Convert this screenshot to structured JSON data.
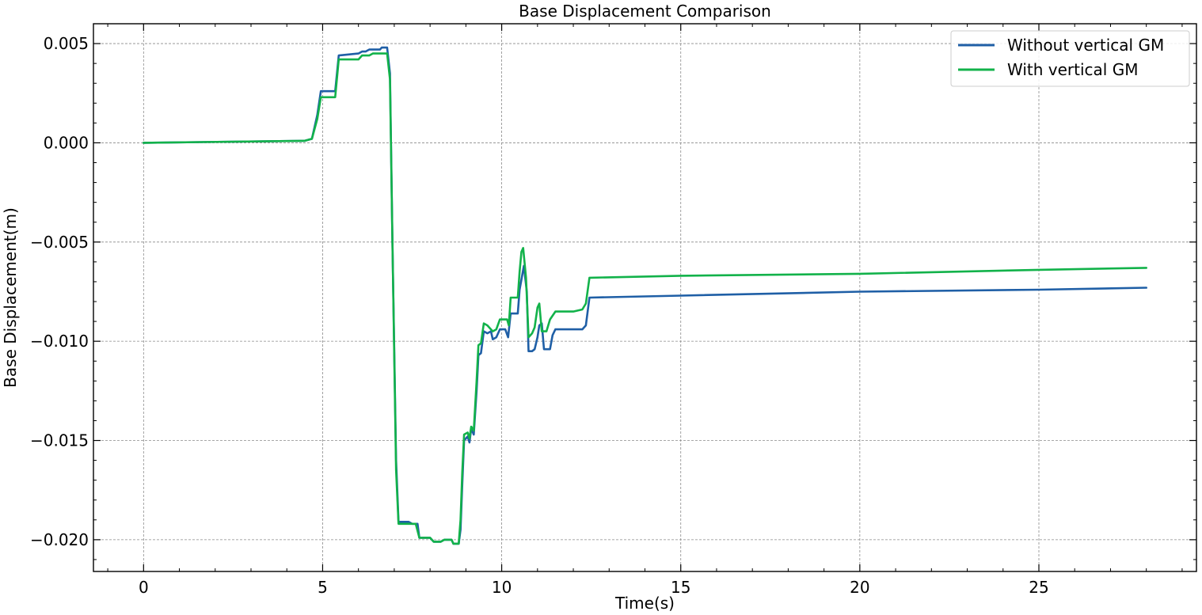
{
  "chart_data": {
    "type": "line",
    "title": "Base Displacement Comparison",
    "xlabel": "Time(s)",
    "ylabel": "Base Displacement(m)",
    "xlim": [
      -1.4,
      29.4
    ],
    "ylim": [
      -0.0216,
      0.006
    ],
    "x_ticks": [
      0,
      5,
      10,
      15,
      20,
      25
    ],
    "x_tick_labels": [
      "0",
      "5",
      "10",
      "15",
      "20",
      "25"
    ],
    "y_ticks": [
      0.005,
      0.0,
      -0.005,
      -0.01,
      -0.015,
      -0.02
    ],
    "y_tick_labels": [
      "0.005",
      "0.000",
      "−0.005",
      "−0.010",
      "−0.015",
      "−0.020"
    ],
    "grid": true,
    "legend_position": "top-right",
    "series": [
      {
        "name": "Without vertical GM",
        "color": "#1f5fa6",
        "points": [
          [
            0,
            0.0
          ],
          [
            4.5,
            0.0001
          ],
          [
            4.7,
            0.0002
          ],
          [
            4.85,
            0.0014
          ],
          [
            4.95,
            0.0026
          ],
          [
            5.35,
            0.0026
          ],
          [
            5.45,
            0.0044
          ],
          [
            6.0,
            0.0045
          ],
          [
            6.1,
            0.0046
          ],
          [
            6.2,
            0.0046
          ],
          [
            6.3,
            0.0047
          ],
          [
            6.6,
            0.0047
          ],
          [
            6.65,
            0.0048
          ],
          [
            6.8,
            0.0048
          ],
          [
            6.88,
            0.0035
          ],
          [
            6.95,
            -0.005
          ],
          [
            7.05,
            -0.016
          ],
          [
            7.12,
            -0.0191
          ],
          [
            7.4,
            -0.0191
          ],
          [
            7.5,
            -0.0192
          ],
          [
            7.65,
            -0.0192
          ],
          [
            7.7,
            -0.0199
          ],
          [
            8.0,
            -0.0199
          ],
          [
            8.1,
            -0.0201
          ],
          [
            8.3,
            -0.0201
          ],
          [
            8.4,
            -0.02
          ],
          [
            8.6,
            -0.02
          ],
          [
            8.65,
            -0.0202
          ],
          [
            8.8,
            -0.0202
          ],
          [
            8.85,
            -0.0195
          ],
          [
            8.9,
            -0.0172
          ],
          [
            8.95,
            -0.015
          ],
          [
            9.05,
            -0.0148
          ],
          [
            9.1,
            -0.0151
          ],
          [
            9.15,
            -0.0144
          ],
          [
            9.22,
            -0.0147
          ],
          [
            9.3,
            -0.0125
          ],
          [
            9.35,
            -0.0107
          ],
          [
            9.42,
            -0.0106
          ],
          [
            9.5,
            -0.0095
          ],
          [
            9.6,
            -0.0096
          ],
          [
            9.7,
            -0.0095
          ],
          [
            9.75,
            -0.0099
          ],
          [
            9.85,
            -0.0098
          ],
          [
            9.95,
            -0.0094
          ],
          [
            10.1,
            -0.0094
          ],
          [
            10.18,
            -0.0098
          ],
          [
            10.25,
            -0.0086
          ],
          [
            10.45,
            -0.0086
          ],
          [
            10.5,
            -0.0074
          ],
          [
            10.55,
            -0.0069
          ],
          [
            10.62,
            -0.0062
          ],
          [
            10.7,
            -0.0075
          ],
          [
            10.75,
            -0.0105
          ],
          [
            10.85,
            -0.0105
          ],
          [
            10.92,
            -0.0104
          ],
          [
            11.0,
            -0.0098
          ],
          [
            11.05,
            -0.0092
          ],
          [
            11.12,
            -0.0091
          ],
          [
            11.18,
            -0.0104
          ],
          [
            11.35,
            -0.0104
          ],
          [
            11.42,
            -0.0097
          ],
          [
            11.5,
            -0.0094
          ],
          [
            12.0,
            -0.0094
          ],
          [
            12.25,
            -0.0094
          ],
          [
            12.35,
            -0.0092
          ],
          [
            12.45,
            -0.0078
          ],
          [
            15,
            -0.0077
          ],
          [
            20,
            -0.0075
          ],
          [
            25,
            -0.0074
          ],
          [
            28,
            -0.0073
          ]
        ]
      },
      {
        "name": "With vertical GM",
        "color": "#12b24a",
        "points": [
          [
            0,
            0.0
          ],
          [
            4.5,
            0.0001
          ],
          [
            4.7,
            0.0002
          ],
          [
            4.85,
            0.0012
          ],
          [
            4.95,
            0.0023
          ],
          [
            5.35,
            0.0023
          ],
          [
            5.45,
            0.0042
          ],
          [
            6.0,
            0.0042
          ],
          [
            6.1,
            0.0044
          ],
          [
            6.3,
            0.0044
          ],
          [
            6.4,
            0.0045
          ],
          [
            6.8,
            0.0045
          ],
          [
            6.88,
            0.0032
          ],
          [
            6.95,
            -0.005
          ],
          [
            7.05,
            -0.0165
          ],
          [
            7.12,
            -0.0192
          ],
          [
            7.6,
            -0.0192
          ],
          [
            7.7,
            -0.0199
          ],
          [
            8.0,
            -0.0199
          ],
          [
            8.1,
            -0.0201
          ],
          [
            8.3,
            -0.0201
          ],
          [
            8.4,
            -0.02
          ],
          [
            8.6,
            -0.02
          ],
          [
            8.65,
            -0.0202
          ],
          [
            8.8,
            -0.0202
          ],
          [
            8.85,
            -0.019
          ],
          [
            8.9,
            -0.0166
          ],
          [
            8.95,
            -0.0147
          ],
          [
            9.05,
            -0.0146
          ],
          [
            9.1,
            -0.0149
          ],
          [
            9.15,
            -0.0143
          ],
          [
            9.22,
            -0.0145
          ],
          [
            9.3,
            -0.012
          ],
          [
            9.35,
            -0.0102
          ],
          [
            9.42,
            -0.0101
          ],
          [
            9.5,
            -0.0091
          ],
          [
            9.6,
            -0.0092
          ],
          [
            9.7,
            -0.0094
          ],
          [
            9.75,
            -0.0095
          ],
          [
            9.85,
            -0.0094
          ],
          [
            9.95,
            -0.0089
          ],
          [
            10.15,
            -0.0089
          ],
          [
            10.2,
            -0.0092
          ],
          [
            10.25,
            -0.0078
          ],
          [
            10.45,
            -0.0078
          ],
          [
            10.5,
            -0.0065
          ],
          [
            10.55,
            -0.0055
          ],
          [
            10.6,
            -0.0053
          ],
          [
            10.68,
            -0.0068
          ],
          [
            10.75,
            -0.0098
          ],
          [
            10.85,
            -0.0096
          ],
          [
            10.92,
            -0.0093
          ],
          [
            11.0,
            -0.0083
          ],
          [
            11.05,
            -0.0081
          ],
          [
            11.12,
            -0.0095
          ],
          [
            11.25,
            -0.0095
          ],
          [
            11.35,
            -0.0089
          ],
          [
            11.5,
            -0.0085
          ],
          [
            12.0,
            -0.0085
          ],
          [
            12.25,
            -0.0084
          ],
          [
            12.35,
            -0.0081
          ],
          [
            12.45,
            -0.0068
          ],
          [
            15,
            -0.0067
          ],
          [
            20,
            -0.0066
          ],
          [
            25,
            -0.0064
          ],
          [
            28,
            -0.0063
          ]
        ]
      }
    ]
  }
}
